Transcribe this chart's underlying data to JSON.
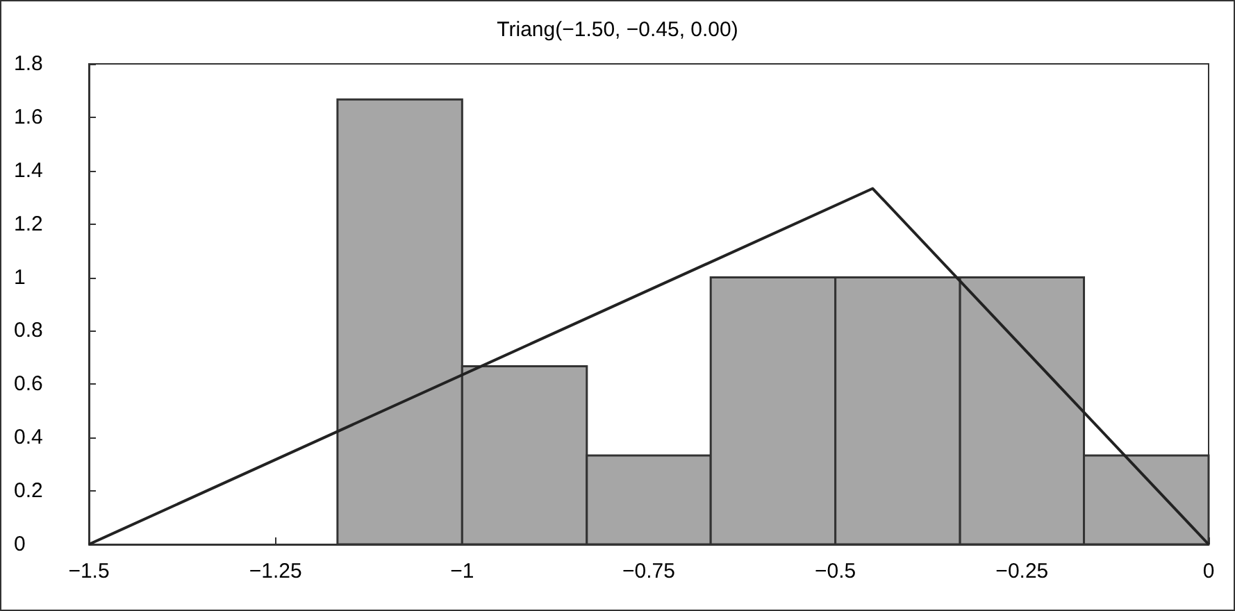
{
  "chart_data": {
    "type": "histogram",
    "title": "Triang(−1.50, −0.45, 0.00)",
    "bins": [
      -1.167,
      -1,
      -0.833,
      -0.667,
      -0.5,
      -0.333,
      -0.167,
      0
    ],
    "values": [
      1.667,
      0.667,
      0.333,
      1,
      1,
      1,
      0.333
    ],
    "color": "#a6a6a6",
    "series": [
      {
        "type": "line",
        "x": [
          -1.5,
          -0.45,
          0
        ],
        "values": [
          0,
          1.333,
          0
        ],
        "color": "#222222",
        "marker": "none",
        "line_style": "solid"
      }
    ],
    "xlim": [
      -1.5,
      0
    ],
    "xticks": [
      {
        "value": -1.5,
        "label": "−1.5"
      },
      {
        "value": -1.25,
        "label": "−1.25"
      },
      {
        "value": -1,
        "label": "−1"
      },
      {
        "value": -0.75,
        "label": "−0.75"
      },
      {
        "value": -0.5,
        "label": "−0.5"
      },
      {
        "value": -0.25,
        "label": "−0.25"
      },
      0
    ],
    "ylim": [
      0,
      1.8
    ],
    "yticks": [
      0,
      0.2,
      0.4,
      0.6,
      0.8,
      1,
      1.2,
      1.4,
      1.6,
      1.8
    ],
    "grid": false
  }
}
